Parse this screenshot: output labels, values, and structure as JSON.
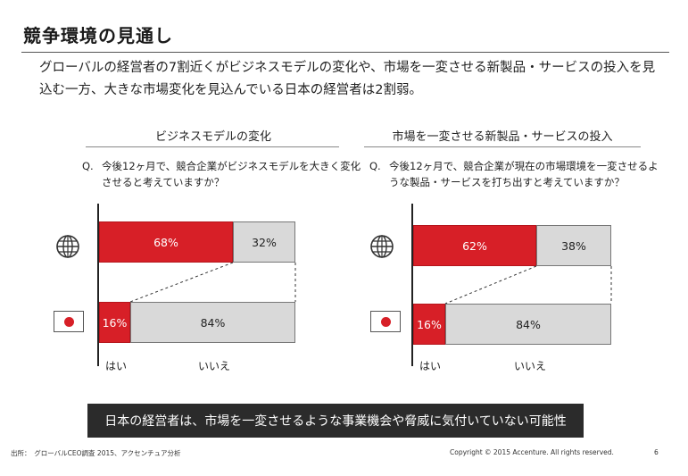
{
  "title": "競争環境の見通し",
  "lead": "グローバルの経営者の7割近くがビジネスモデルの変化や、市場を一変させる新製品・サービスの投入を見込む一方、大きな市場変化を見込んでいる日本の経営者は2割弱。",
  "panels": [
    {
      "heading": "ビジネスモデルの変化",
      "q_label": "Q.",
      "question": "今後12ヶ月で、競合企業がビジネスモデルを大きく変化させると考えていますか？",
      "rows": [
        {
          "icon": "globe-icon",
          "yes": 68,
          "no": 32,
          "yes_label": "68%",
          "no_label": "32%"
        },
        {
          "icon": "japan-flag-icon",
          "yes": 16,
          "no": 84,
          "yes_label": "16%",
          "no_label": "84%"
        }
      ],
      "x_labels": [
        "はい",
        "いいえ"
      ]
    },
    {
      "heading": "市場を一変させる新製品・サービスの投入",
      "q_label": "Q.",
      "question": "今後12ヶ月で、競合企業が現在の市場環境を一変させるような製品・サービスを打ち出すと考えていますか？",
      "rows": [
        {
          "icon": "globe-icon",
          "yes": 62,
          "no": 38,
          "yes_label": "62%",
          "no_label": "38%"
        },
        {
          "icon": "japan-flag-icon",
          "yes": 16,
          "no": 84,
          "yes_label": "16%",
          "no_label": "84%"
        }
      ],
      "x_labels": [
        "はい",
        "いいえ"
      ]
    }
  ],
  "chart_data": [
    {
      "type": "bar",
      "orientation": "horizontal",
      "stacked": true,
      "title": "ビジネスモデルの変化",
      "categories": [
        "globe",
        "japan"
      ],
      "series": [
        {
          "name": "はい",
          "values": [
            68,
            16
          ]
        },
        {
          "name": "いいえ",
          "values": [
            32,
            84
          ]
        }
      ],
      "color_yes": "#d71f27",
      "color_no": "#d9d9d9"
    },
    {
      "type": "bar",
      "orientation": "horizontal",
      "stacked": true,
      "title": "市場を一変させる新製品・サービスの投入",
      "categories": [
        "globe",
        "japan"
      ],
      "series": [
        {
          "name": "はい",
          "values": [
            62,
            16
          ]
        },
        {
          "name": "いいえ",
          "values": [
            38,
            84
          ]
        }
      ],
      "color_yes": "#d71f27",
      "color_no": "#d9d9d9"
    }
  ],
  "banner": "日本の経営者は、市場を一変させるような事業機会や脅威に気付いていない可能性",
  "footer": {
    "source": "出所：　グローバルCEO調査 2015、アクセンチュア分析",
    "copyright": "Copyright © 2015 Accenture. All rights reserved.",
    "page": "6"
  },
  "colors": {
    "accent_red": "#d71f27",
    "bar_gray": "#d9d9d9",
    "banner_bg": "#2b2b2b"
  }
}
